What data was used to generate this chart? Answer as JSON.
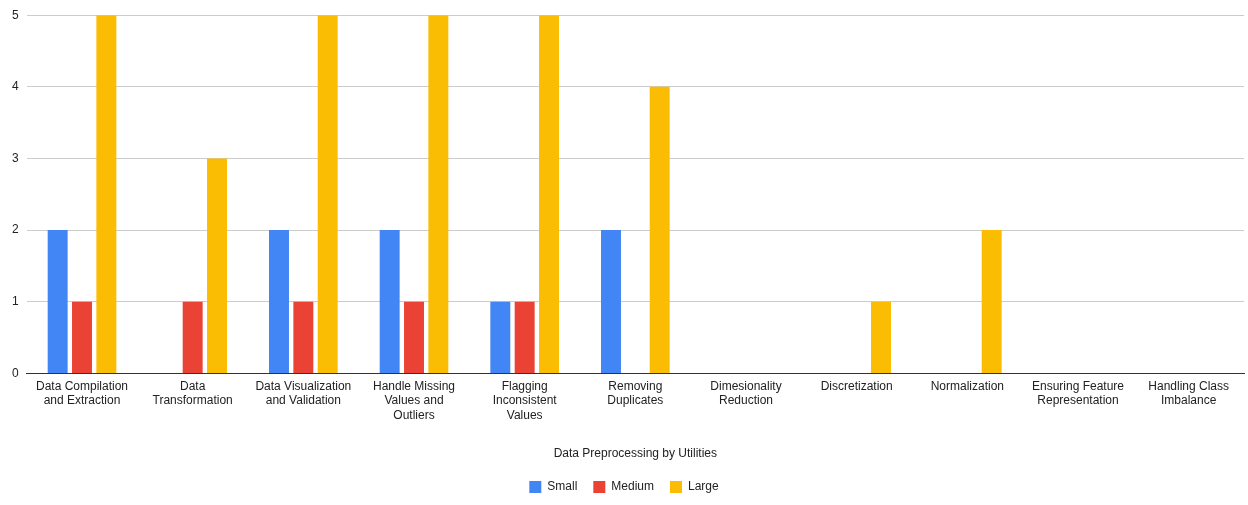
{
  "chart_data": {
    "type": "bar",
    "xlabel": "Data Preprocessing by Utilities",
    "categories": [
      "Data Compilation and Extraction",
      "Data Transformation",
      "Data Visualization and Validation",
      "Handle Missing Values and Outliers",
      "Flagging Inconsistent Values",
      "Removing Duplicates",
      "Dimesionality Reduction",
      "Discretization",
      "Normalization",
      "Ensuring Feature Representation",
      "Handling Class Imbalance"
    ],
    "series": [
      {
        "name": "Small",
        "color": "#4285f4",
        "values": [
          2,
          0,
          2,
          2,
          1,
          2,
          0,
          0,
          0,
          0,
          0
        ]
      },
      {
        "name": "Medium",
        "color": "#ea4335",
        "values": [
          1,
          1,
          1,
          1,
          1,
          0,
          0,
          0,
          0,
          0,
          0
        ]
      },
      {
        "name": "Large",
        "color": "#fbbc04",
        "values": [
          5,
          3,
          5,
          5,
          5,
          4,
          0,
          1,
          2,
          0,
          0
        ]
      }
    ],
    "ylim": [
      0,
      5
    ],
    "yticks": [
      0,
      1,
      2,
      3,
      4,
      5
    ],
    "grid": "y",
    "legend": "bottom"
  }
}
